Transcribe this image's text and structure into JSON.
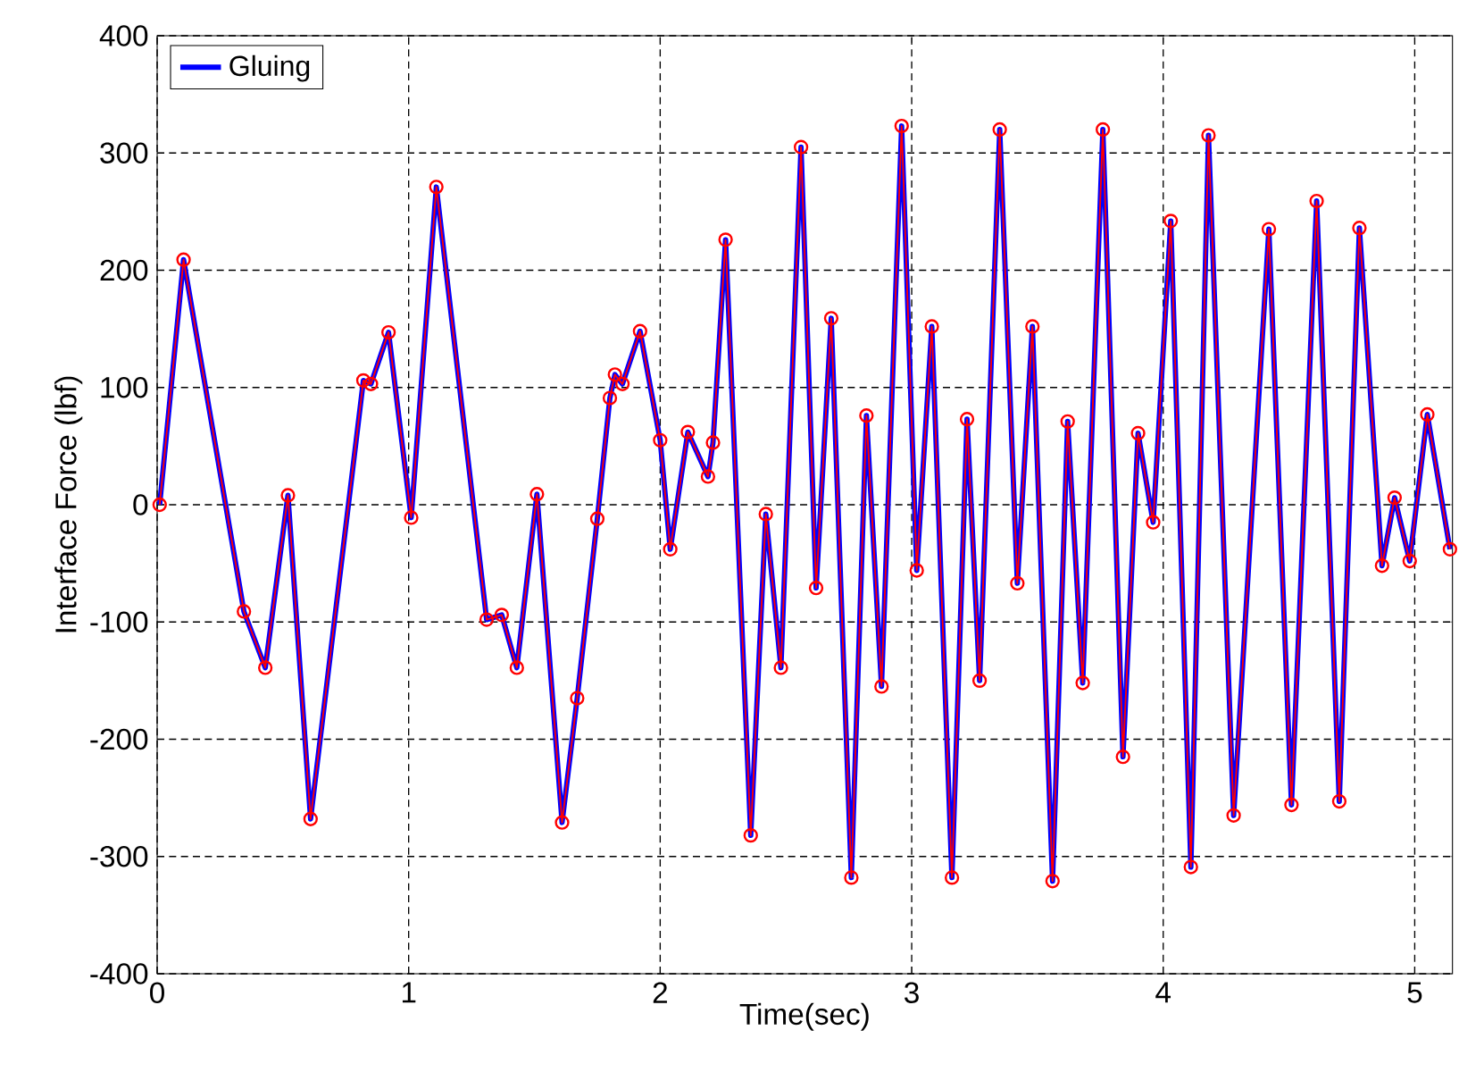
{
  "chart_data": {
    "type": "line",
    "xlabel": "Time(sec)",
    "ylabel": "Interface Force (lbf)",
    "xlim": [
      0,
      5.15
    ],
    "ylim": [
      -400,
      400
    ],
    "xticks": [
      0,
      1,
      2,
      3,
      4,
      5
    ],
    "yticks": [
      -400,
      -300,
      -200,
      -100,
      0,
      100,
      200,
      300,
      400
    ],
    "grid": true,
    "legend": "top left",
    "x": [
      0.01,
      0.105,
      0.345,
      0.43,
      0.52,
      0.61,
      0.82,
      0.85,
      0.92,
      1.01,
      1.11,
      1.31,
      1.37,
      1.43,
      1.51,
      1.61,
      1.67,
      1.75,
      1.8,
      1.82,
      1.85,
      1.92,
      2.0,
      2.04,
      2.11,
      2.19,
      2.21,
      2.26,
      2.36,
      2.42,
      2.48,
      2.56,
      2.62,
      2.68,
      2.76,
      2.82,
      2.88,
      2.96,
      3.02,
      3.08,
      3.16,
      3.22,
      3.27,
      3.35,
      3.42,
      3.48,
      3.56,
      3.62,
      3.68,
      3.76,
      3.84,
      3.9,
      3.96,
      4.03,
      4.11,
      4.18,
      4.28,
      4.42,
      4.51,
      4.61,
      4.7,
      4.78,
      4.87,
      4.92,
      4.98,
      5.05,
      5.14
    ],
    "series": [
      {
        "name": "Gluing",
        "color": "#0000ff",
        "line_style": "solid",
        "marker": "none",
        "values": [
          0,
          209,
          -91,
          -139,
          8,
          -268,
          106,
          103,
          147,
          -11,
          271,
          -98,
          -94,
          -139,
          9,
          -271,
          -165,
          -12,
          91,
          111,
          103,
          148,
          55,
          -38,
          62,
          24,
          53,
          226,
          -282,
          -8,
          -139,
          305,
          -71,
          159,
          -318,
          76,
          -155,
          323,
          -56,
          152,
          -318,
          73,
          -150,
          320,
          -67,
          152,
          -321,
          71,
          -152,
          320,
          -215,
          61,
          -15,
          242,
          -309,
          315,
          -265,
          235,
          -256,
          259,
          -253,
          236,
          -52,
          6,
          -48,
          77,
          -38
        ]
      },
      {
        "color": "#ff0000",
        "line_style": "solid",
        "marker": "circle",
        "values": [
          0,
          209,
          -91,
          -139,
          8,
          -268,
          106,
          103,
          147,
          -11,
          271,
          -98,
          -94,
          -139,
          9,
          -271,
          -165,
          -12,
          91,
          111,
          103,
          148,
          55,
          -38,
          62,
          24,
          53,
          226,
          -282,
          -8,
          -139,
          305,
          -71,
          159,
          -318,
          76,
          -155,
          323,
          -56,
          152,
          -318,
          73,
          -150,
          320,
          -67,
          152,
          -321,
          71,
          -152,
          320,
          -215,
          61,
          -15,
          242,
          -309,
          315,
          -265,
          235,
          -256,
          259,
          -253,
          236,
          -52,
          6,
          -48,
          77,
          -38
        ]
      }
    ]
  }
}
